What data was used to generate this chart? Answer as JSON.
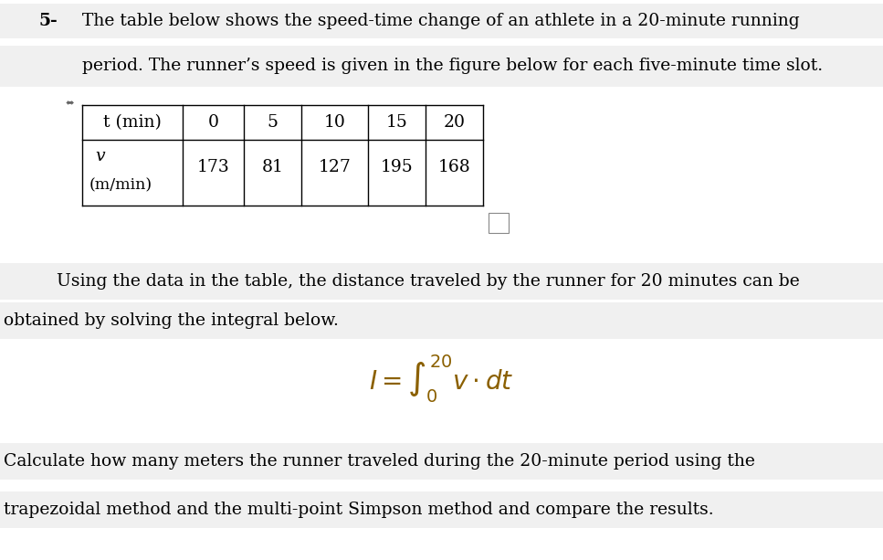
{
  "title_number": "5-",
  "line1": "The table below shows the speed-time change of an athlete in a 20-minute running",
  "line2": "period. The runner’s speed is given in the figure below for each five-minute time slot.",
  "table_headers": [
    "t (min)",
    "0",
    "5",
    "10",
    "15",
    "20"
  ],
  "table_row1_label": "v",
  "table_row2_label": "(m/min)",
  "table_values": [
    "173",
    "81",
    "127",
    "195",
    "168"
  ],
  "para1_line1": "Using the data in the table, the distance traveled by the runner for 20 minutes can be",
  "para1_line2": "obtained by solving the integral below.",
  "para2_line1": "Calculate how many meters the runner traveled during the 20-minute period using the",
  "para2_line2": "trapezoidal method and the multi-point Simpson method and compare the results.",
  "bg_color": "#ffffff",
  "text_color": "#000000",
  "table_border_color": "#000000",
  "highlight_color": "#f0f0f0",
  "integral_color": "#8B6000",
  "font_size_main": 13.5,
  "font_size_table": 13.5,
  "font_size_title": 13.5
}
